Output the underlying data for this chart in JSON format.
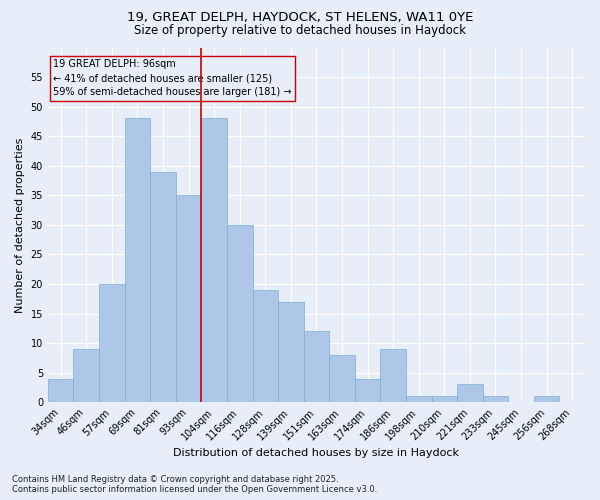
{
  "title_line1": "19, GREAT DELPH, HAYDOCK, ST HELENS, WA11 0YE",
  "title_line2": "Size of property relative to detached houses in Haydock",
  "xlabel": "Distribution of detached houses by size in Haydock",
  "ylabel": "Number of detached properties",
  "footnote1": "Contains HM Land Registry data © Crown copyright and database right 2025.",
  "footnote2": "Contains public sector information licensed under the Open Government Licence v3.0.",
  "bar_labels": [
    "34sqm",
    "46sqm",
    "57sqm",
    "69sqm",
    "81sqm",
    "93sqm",
    "104sqm",
    "116sqm",
    "128sqm",
    "139sqm",
    "151sqm",
    "163sqm",
    "174sqm",
    "186sqm",
    "198sqm",
    "210sqm",
    "221sqm",
    "233sqm",
    "245sqm",
    "256sqm",
    "268sqm"
  ],
  "bar_values": [
    4,
    9,
    20,
    48,
    39,
    35,
    48,
    30,
    19,
    17,
    12,
    8,
    4,
    9,
    1,
    1,
    3,
    1,
    0,
    1,
    0
  ],
  "bar_color": "#aec6e8",
  "bar_edgecolor": "#7aafd4",
  "vline_x_index": 5.5,
  "subject_label": "19 GREAT DELPH: 96sqm",
  "annotation_line1": "← 41% of detached houses are smaller (125)",
  "annotation_line2": "59% of semi-detached houses are larger (181) →",
  "vline_color": "#cc0000",
  "box_edgecolor": "#cc0000",
  "ylim": [
    0,
    60
  ],
  "yticks": [
    0,
    5,
    10,
    15,
    20,
    25,
    30,
    35,
    40,
    45,
    50,
    55
  ],
  "background_color": "#e8eef8",
  "grid_color": "#ffffff",
  "title_fontsize": 9.5,
  "subtitle_fontsize": 8.5,
  "axis_label_fontsize": 8,
  "tick_fontsize": 7,
  "footnote_fontsize": 6
}
